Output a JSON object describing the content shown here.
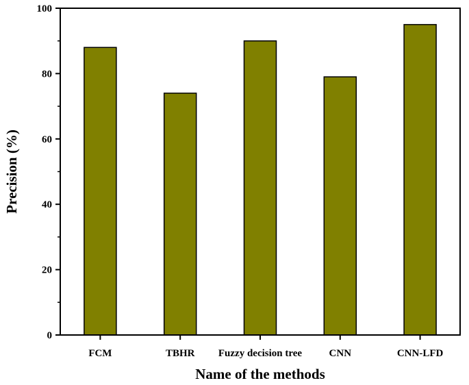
{
  "chart_data": {
    "type": "bar",
    "categories": [
      "FCM",
      "TBHR",
      "Fuzzy decision tree",
      "CNN",
      "CNN-LFD"
    ],
    "values": [
      88,
      74,
      90,
      79,
      95
    ],
    "xlabel": "Name of the methods",
    "ylabel": "Precision (%)",
    "ylim": [
      0,
      100
    ],
    "yticks": [
      0,
      20,
      40,
      60,
      80,
      100
    ],
    "bar_color": "#808000",
    "grid": false,
    "legend": "none"
  }
}
